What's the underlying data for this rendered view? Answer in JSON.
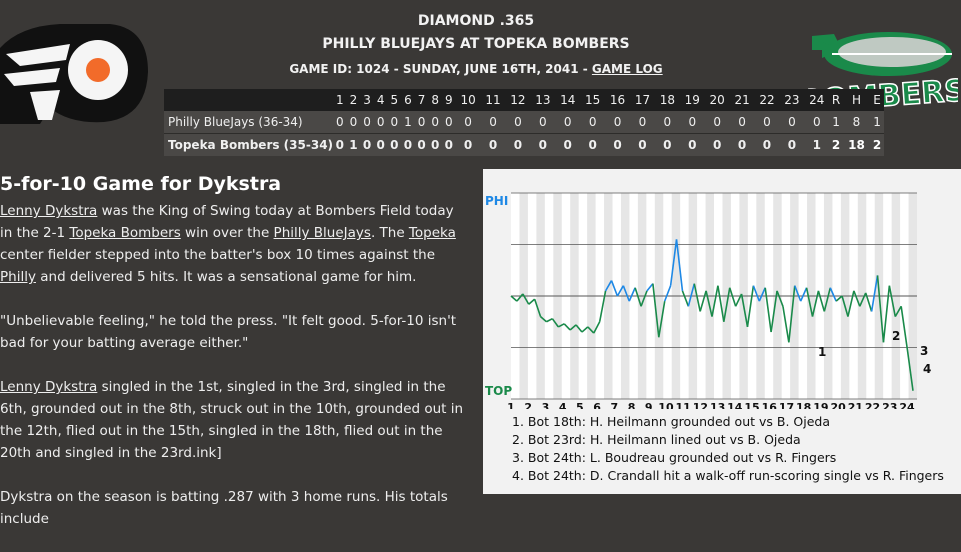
{
  "header": {
    "line1": "DIAMOND .365",
    "line2": "PHILLY BLUEJAYS AT TOPEKA BOMBERS",
    "line3_prefix": "GAME ID: 1024 - SUNDAY, JUNE 16TH, 2041 - ",
    "game_log_link": "GAME LOG"
  },
  "logos": {
    "away": "flyers-style-logo",
    "home_text": "BOMBERS"
  },
  "colors": {
    "page_bg": "#3a3836",
    "home_green": "#1a8a4a",
    "away_blue": "#1e88e5",
    "away_orange": "#f26b2a"
  },
  "boxscore": {
    "innings": [
      "1",
      "2",
      "3",
      "4",
      "5",
      "6",
      "7",
      "8",
      "9",
      "10",
      "11",
      "12",
      "13",
      "14",
      "15",
      "16",
      "17",
      "18",
      "19",
      "20",
      "21",
      "22",
      "23",
      "24",
      "R",
      "H",
      "E"
    ],
    "rows": [
      {
        "team": "Philly BlueJays (36-34)",
        "cells": [
          "0",
          "0",
          "0",
          "0",
          "0",
          "1",
          "0",
          "0",
          "0",
          "0",
          "0",
          "0",
          "0",
          "0",
          "0",
          "0",
          "0",
          "0",
          "0",
          "0",
          "0",
          "0",
          "0",
          "0",
          "1",
          "8",
          "1"
        ]
      },
      {
        "team": "Topeka Bombers (35-34)",
        "cells": [
          "0",
          "1",
          "0",
          "0",
          "0",
          "0",
          "0",
          "0",
          "0",
          "0",
          "0",
          "0",
          "0",
          "0",
          "0",
          "0",
          "0",
          "0",
          "0",
          "0",
          "0",
          "0",
          "0",
          "1",
          "2",
          "18",
          "2"
        ]
      }
    ]
  },
  "article": {
    "headline": "5-for-10 Game for Dykstra",
    "p1": [
      {
        "t": "Lenny Dykstra",
        "link": true
      },
      {
        "t": " was the King of Swing today at Bombers Field today in the 2-1 "
      },
      {
        "t": "Topeka Bombers",
        "link": true
      },
      {
        "t": " win over the "
      },
      {
        "t": "Philly BlueJays",
        "link": true
      },
      {
        "t": ". The "
      },
      {
        "t": "Topeka",
        "link": true
      },
      {
        "t": " center fielder stepped into the batter's box 10 times against the "
      },
      {
        "t": "Philly",
        "link": true
      },
      {
        "t": " and delivered 5 hits. It was a sensational game for him."
      }
    ],
    "p2": "\"Unbelievable feeling,\" he told the press. \"It felt good. 5-for-10 isn't bad for your batting average either.\"",
    "p3": [
      {
        "t": "Lenny Dykstra",
        "link": true
      },
      {
        "t": " singled in the 1st, singled in the 3rd, singled in the 6th, grounded out in the 8th, struck out in the 10th, grounded out in the 12th, flied out in the 15th, singled in the 18th, flied out in the 20th and singled in the 23rd.ink]"
      }
    ],
    "p4": "Dykstra on the season is batting .287 with 3 home runs. His totals include"
  },
  "chart_data": {
    "type": "line",
    "title": "",
    "top_label": "PHI",
    "bottom_label": "TOP",
    "x_tick_labels": [
      "1",
      "2",
      "3",
      "4",
      "5",
      "6",
      "7",
      "8",
      "9",
      "10",
      "11",
      "12",
      "13",
      "14",
      "15",
      "16",
      "17",
      "18",
      "19",
      "20",
      "21",
      "22",
      "23",
      "24"
    ],
    "ylim": [
      -1,
      1
    ],
    "series": [
      {
        "values": [
          0.0,
          -0.05,
          0.02,
          -0.08,
          -0.03,
          -0.2,
          -0.25,
          -0.22,
          -0.3,
          -0.27,
          -0.33,
          -0.28,
          -0.35,
          -0.3,
          -0.36,
          -0.25,
          0.05,
          0.15,
          0.0,
          0.1,
          -0.05,
          0.08,
          -0.1,
          0.05,
          0.12,
          -0.4,
          -0.05,
          0.1,
          0.55,
          0.05,
          -0.1,
          0.12,
          -0.15,
          0.05,
          -0.2,
          0.1,
          -0.25,
          0.08,
          -0.1,
          0.02,
          -0.3,
          0.1,
          -0.05,
          0.08,
          -0.35,
          0.05,
          -0.1,
          -0.45,
          0.1,
          -0.05,
          0.08,
          -0.2,
          0.05,
          -0.15,
          0.08,
          -0.05,
          0.0,
          -0.2,
          0.05,
          -0.1,
          0.03,
          -0.15,
          0.2,
          -0.45,
          0.1,
          -0.2,
          -0.1,
          -0.5,
          -0.92
        ]
      }
    ],
    "annotations": [
      "1",
      "2",
      "3",
      "4"
    ]
  },
  "key_plays": [
    "1. Bot 18th: H. Heilmann grounded out vs B. Ojeda",
    "2. Bot 23rd: H. Heilmann lined out vs B. Ojeda",
    "3. Bot 24th: L. Boudreau grounded out vs R. Fingers",
    "4. Bot 24th: D. Crandall hit a walk-off run-scoring single vs R. Fingers"
  ]
}
